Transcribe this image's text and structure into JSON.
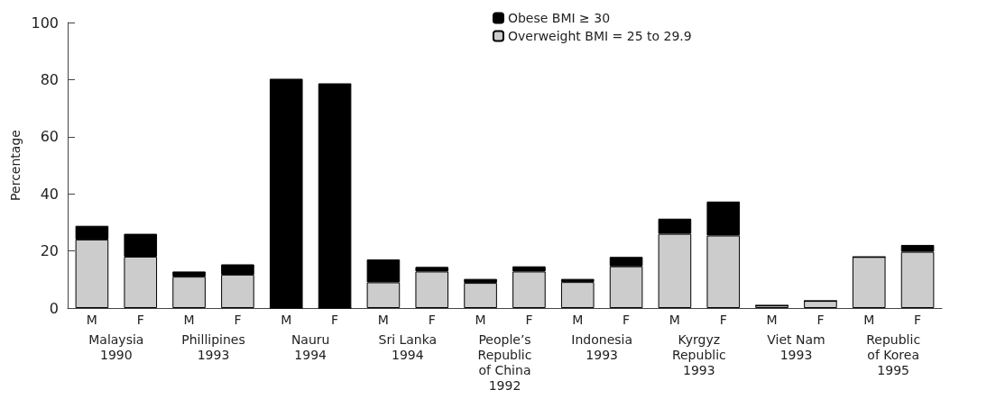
{
  "chart_data": {
    "type": "bar",
    "stacked": true,
    "ylabel": "Percentage",
    "categories": [
      "M",
      "F",
      "M",
      "F",
      "M",
      "F",
      "M",
      "F",
      "M",
      "F",
      "M",
      "F",
      "M",
      "F",
      "M",
      "F",
      "M",
      "F"
    ],
    "series": [
      {
        "name": "Overweight BMI = 25 to 29.9",
        "color": "#cccccc",
        "values": [
          24,
          18,
          11,
          11.7,
          0,
          0,
          9,
          12.8,
          8.8,
          12.8,
          9.1,
          14.6,
          26,
          25.4,
          0.9,
          2.5,
          17.9,
          19.7
        ]
      },
      {
        "name": "Obese BMI ≥ 30",
        "color": "#000000",
        "values": [
          4.8,
          8,
          1.8,
          3.6,
          80.3,
          78.7,
          8,
          1.6,
          1.4,
          1.8,
          1.1,
          3.3,
          5.3,
          11.9,
          0,
          0,
          0,
          2.4
        ]
      }
    ],
    "annotations": [
      "Malaysia\n1990",
      "Phillipines\n1993",
      "Nauru\n1994",
      "Sri Lanka\n1994",
      "People’s\nRepublic\nof China\n1992",
      "Indonesia\n1993",
      "Kyrgyz\nRepublic\n1993",
      "Viet Nam\n1993",
      "Republic\nof Korea\n1995"
    ],
    "ylim": [
      0,
      100
    ],
    "yticks": [
      0,
      20,
      40,
      60,
      80,
      100
    ],
    "legend": "top",
    "grid": false
  }
}
